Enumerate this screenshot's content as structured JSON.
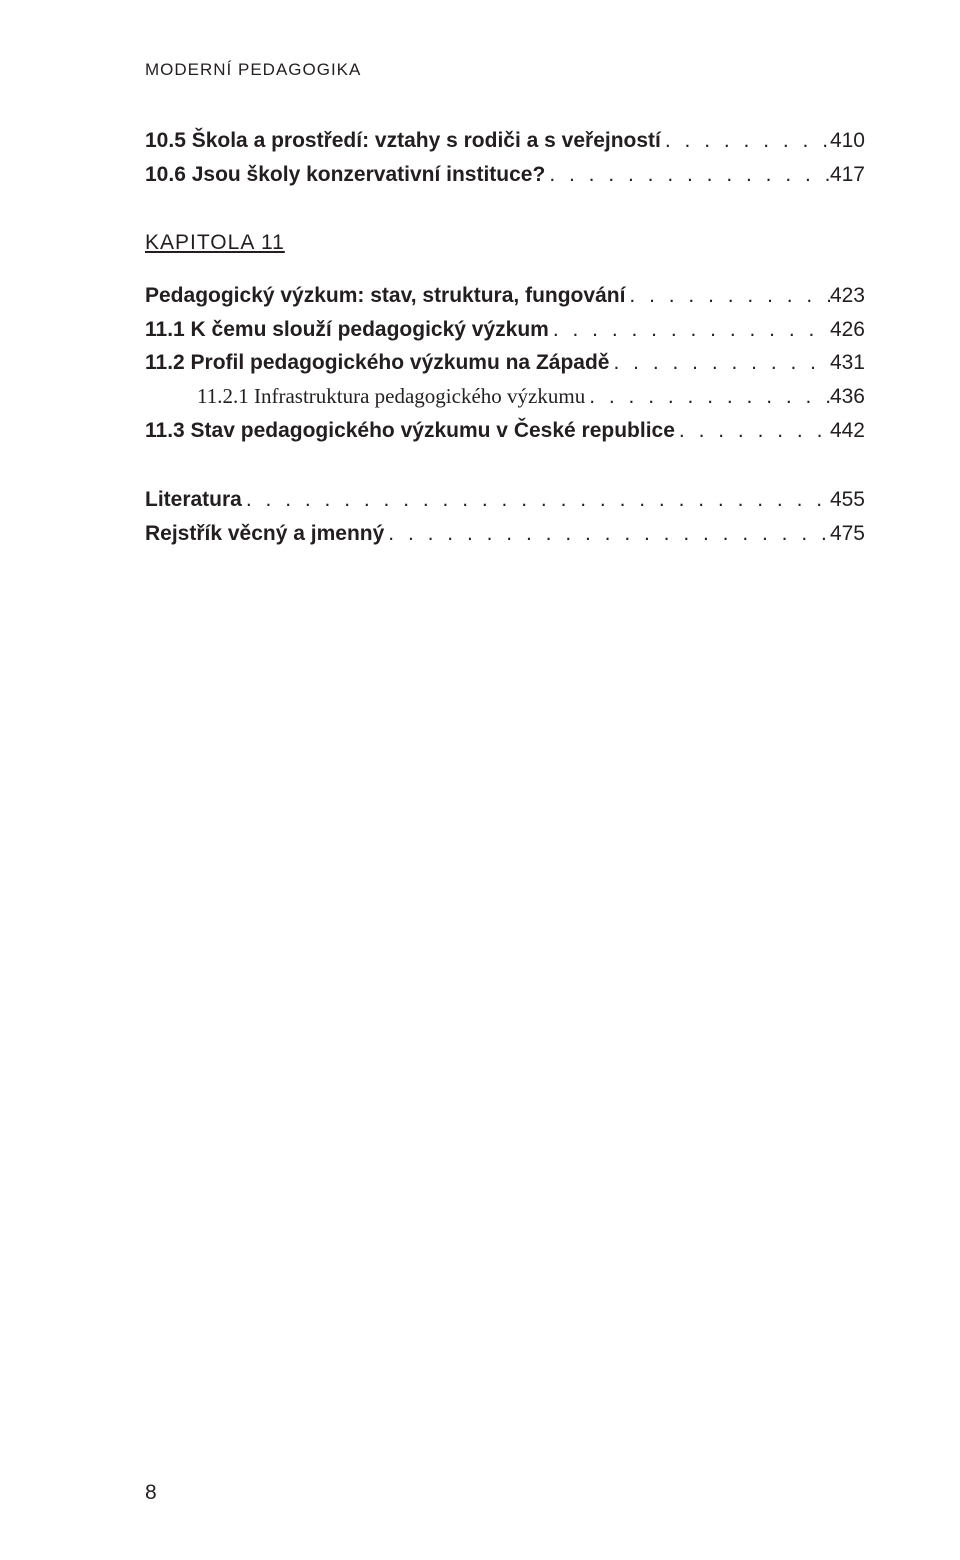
{
  "runningHead": "MODERNÍ PEDAGOGIKA",
  "entries": [
    {
      "kind": "line",
      "bold": true,
      "indent": 0,
      "label": "10.5 Škola a prostředí: vztahy s rodiči a s veřejností",
      "page": "410"
    },
    {
      "kind": "line",
      "bold": true,
      "indent": 0,
      "label": "10.6 Jsou školy konzervativní instituce?",
      "page": "417"
    },
    {
      "kind": "kapitola",
      "label": "KAPITOLA  11"
    },
    {
      "kind": "line",
      "bold": true,
      "indent": 0,
      "label": "Pedagogický výzkum: stav, struktura, fungování",
      "page": "423"
    },
    {
      "kind": "line",
      "bold": true,
      "indent": 0,
      "label": "11.1 K čemu slouží pedagogický výzkum",
      "page": "426"
    },
    {
      "kind": "line",
      "bold": true,
      "indent": 0,
      "label": "11.2 Profil pedagogického výzkumu na Západě",
      "page": "431"
    },
    {
      "kind": "line",
      "bold": false,
      "indent": 1,
      "serif": true,
      "label": "11.2.1 Infrastruktura pedagogického výzkumu",
      "page": "436"
    },
    {
      "kind": "line",
      "bold": true,
      "indent": 0,
      "label": "11.3 Stav pedagogického výzkumu v České republice",
      "page": "442"
    },
    {
      "kind": "line",
      "bold": true,
      "indent": 0,
      "gap": true,
      "label": "Literatura",
      "page": "455"
    },
    {
      "kind": "line",
      "bold": true,
      "indent": 0,
      "label": "Rejstřík věcný a jmenný",
      "page": "475"
    }
  ],
  "pageNumber": "8"
}
